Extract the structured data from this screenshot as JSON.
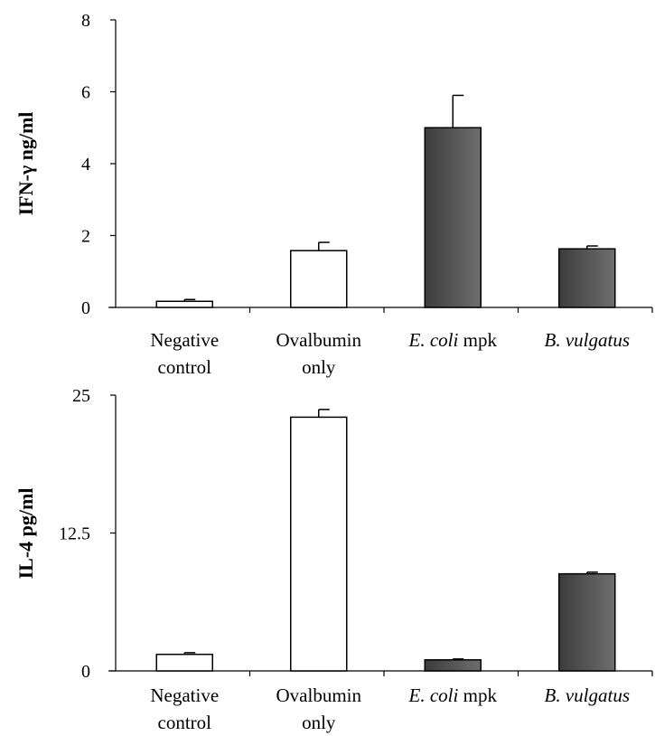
{
  "chart_data": [
    {
      "type": "bar",
      "ylabel": "IFN-γ ng/ml",
      "ylim": [
        0,
        8
      ],
      "yticks": [
        "0",
        "2",
        "4",
        "6",
        "8"
      ],
      "categories": [
        {
          "lines": [
            [
              {
                "t": "Negative",
                "i": false
              }
            ],
            [
              {
                "t": "control",
                "i": false
              }
            ]
          ]
        },
        {
          "lines": [
            [
              {
                "t": "Ovalbumin",
                "i": false
              }
            ],
            [
              {
                "t": "only",
                "i": false
              }
            ]
          ]
        },
        {
          "lines": [
            [
              {
                "t": "E. coli",
                "i": true
              },
              {
                "t": " mpk",
                "i": false
              }
            ]
          ]
        },
        {
          "lines": [
            [
              {
                "t": "B. vulgatus",
                "i": true
              }
            ]
          ]
        }
      ],
      "values": [
        0.17,
        1.58,
        5.0,
        1.63
      ],
      "errors": [
        0.05,
        0.23,
        0.9,
        0.08
      ],
      "fills": [
        "white",
        "white",
        "dark",
        "dark"
      ]
    },
    {
      "type": "bar",
      "ylabel": "IL-4 pg/ml",
      "ylim": [
        0,
        25
      ],
      "yticks": [
        "0",
        "12.5",
        "25"
      ],
      "categories": [
        {
          "lines": [
            [
              {
                "t": "Negative",
                "i": false
              }
            ],
            [
              {
                "t": "control",
                "i": false
              }
            ]
          ]
        },
        {
          "lines": [
            [
              {
                "t": "Ovalbumin",
                "i": false
              }
            ],
            [
              {
                "t": "only",
                "i": false
              }
            ]
          ]
        },
        {
          "lines": [
            [
              {
                "t": "E. coli",
                "i": true
              },
              {
                "t": " mpk",
                "i": false
              }
            ]
          ]
        },
        {
          "lines": [
            [
              {
                "t": "B. vulgatus",
                "i": true
              }
            ]
          ]
        }
      ],
      "values": [
        1.5,
        23.0,
        1.0,
        8.8
      ],
      "errors": [
        0.15,
        0.7,
        0.08,
        0.15
      ],
      "fills": [
        "white",
        "white",
        "dark",
        "dark"
      ]
    }
  ],
  "colors": {
    "white": "#ffffff",
    "dark_left": "#3c3c3c",
    "dark_right": "#6e6e6e",
    "stroke": "#000000"
  }
}
